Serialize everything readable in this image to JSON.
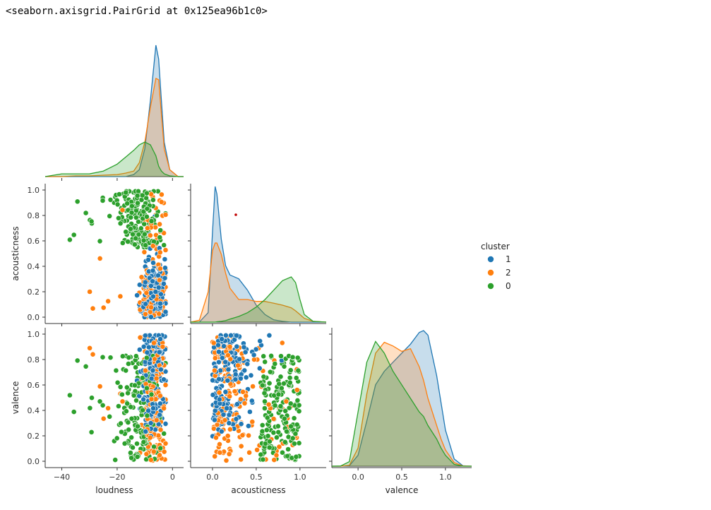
{
  "output_text": "<seaborn.axisgrid.PairGrid at 0x125ea96b1c0>",
  "colors": {
    "1": "#1f77b4",
    "2": "#ff7f0e",
    "0": "#2ca02c"
  },
  "chart_data": {
    "type": "scatter",
    "subtype": "pairplot",
    "variables": [
      "loudness",
      "acousticness",
      "valence"
    ],
    "hue": "cluster",
    "legend": {
      "title": "cluster",
      "entries": [
        "1",
        "2",
        "0"
      ],
      "placement": "right"
    },
    "axes": {
      "loudness": {
        "ticks": [
          "−40",
          "−20",
          "0"
        ],
        "range": [
          -46,
          4
        ]
      },
      "acousticness": {
        "ticks": [
          "0.0",
          "0.2",
          "0.4",
          "0.6",
          "0.8",
          "1.0"
        ],
        "xticks": [
          "0.0",
          "0.5",
          "1.0"
        ],
        "range": [
          -0.25,
          1.3
        ]
      },
      "valence": {
        "ticks": [
          "0.0",
          "0.2",
          "0.4",
          "0.6",
          "0.8",
          "1.0"
        ],
        "xticks": [
          "0.0",
          "0.5",
          "1.0"
        ],
        "range": [
          -0.3,
          1.3
        ]
      }
    },
    "kde": {
      "loudness": {
        "x": [
          -46,
          -40,
          -35,
          -30,
          -25,
          -20,
          -17,
          -14,
          -12,
          -10,
          -8,
          -6,
          -5,
          -4,
          -3,
          -1,
          2,
          4
        ],
        "series": [
          {
            "name": "1",
            "values": [
              0,
              0,
              0,
              0,
              0,
              0,
              0,
              0.003,
              0.01,
              0.04,
              0.11,
              0.19,
              0.17,
              0.11,
              0.05,
              0.01,
              0,
              0
            ]
          },
          {
            "name": "2",
            "values": [
              0,
              0,
              0.001,
              0.001,
              0.002,
              0.003,
              0.005,
              0.008,
              0.02,
              0.05,
              0.1,
              0.142,
              0.14,
              0.09,
              0.04,
              0.01,
              0,
              0
            ]
          },
          {
            "name": "0",
            "values": [
              0,
              0.004,
              0.004,
              0.004,
              0.008,
              0.018,
              0.028,
              0.038,
              0.046,
              0.05,
              0.046,
              0.03,
              0.015,
              0.008,
              0.004,
              0.001,
              0,
              0
            ]
          }
        ]
      },
      "acousticness": {
        "x": [
          -0.25,
          -0.15,
          -0.05,
          0.0,
          0.03,
          0.05,
          0.1,
          0.15,
          0.2,
          0.3,
          0.4,
          0.5,
          0.6,
          0.7,
          0.8,
          0.9,
          0.95,
          1.0,
          1.05,
          1.15,
          1.3
        ],
        "series": [
          {
            "name": "1",
            "values": [
              0,
              0.002,
              0.25,
              2.4,
              3.6,
              3.4,
              2.2,
              1.5,
              1.25,
              1.15,
              0.85,
              0.45,
              0.2,
              0.06,
              0.02,
              0,
              0,
              0,
              0,
              0,
              0
            ]
          },
          {
            "name": "2",
            "values": [
              0,
              0.05,
              0.8,
              1.9,
              2.1,
              2.1,
              1.8,
              1.3,
              0.9,
              0.6,
              0.6,
              0.55,
              0.55,
              0.5,
              0.45,
              0.38,
              0.3,
              0.2,
              0.1,
              0.02,
              0
            ]
          },
          {
            "name": "0",
            "values": [
              0,
              0,
              0,
              0,
              0,
              0.01,
              0.02,
              0.04,
              0.08,
              0.15,
              0.25,
              0.4,
              0.6,
              0.85,
              1.1,
              1.2,
              1.05,
              0.6,
              0.2,
              0.02,
              0
            ]
          }
        ]
      },
      "valence": {
        "x": [
          -0.3,
          -0.2,
          -0.1,
          0.0,
          0.1,
          0.2,
          0.3,
          0.4,
          0.5,
          0.6,
          0.7,
          0.75,
          0.8,
          0.9,
          0.95,
          1.0,
          1.1,
          1.2,
          1.3
        ],
        "series": [
          {
            "name": "1",
            "values": [
              0,
              0,
              0.005,
              0.12,
              0.5,
              0.9,
              1.05,
              1.15,
              1.25,
              1.35,
              1.48,
              1.5,
              1.45,
              1.0,
              0.7,
              0.4,
              0.08,
              0.005,
              0
            ]
          },
          {
            "name": "2",
            "values": [
              0,
              0,
              0.01,
              0.2,
              0.8,
              1.25,
              1.37,
              1.33,
              1.27,
              1.3,
              1.1,
              0.95,
              0.75,
              0.45,
              0.3,
              0.18,
              0.04,
              0.002,
              0
            ]
          },
          {
            "name": "0",
            "values": [
              0,
              0.002,
              0.05,
              0.6,
              1.15,
              1.38,
              1.25,
              1.05,
              0.9,
              0.75,
              0.6,
              0.55,
              0.45,
              0.3,
              0.2,
              0.12,
              0.02,
              0,
              0
            ]
          }
        ]
      }
    },
    "scatter_summary": {
      "points_per_panel": 520,
      "description_ranges": {
        "1": {
          "loudness": [
            -15,
            -3
          ],
          "acousticness": [
            0.0,
            0.55
          ],
          "valence": [
            0.0,
            1.0
          ]
        },
        "2": {
          "loudness": [
            -20,
            -2
          ],
          "acousticness": [
            0.0,
            1.0
          ],
          "valence": [
            0.0,
            1.0
          ]
        },
        "0": {
          "loudness": [
            -40,
            -4
          ],
          "acousticness": [
            0.2,
            1.0
          ],
          "valence": [
            0.0,
            1.0
          ]
        }
      }
    }
  }
}
